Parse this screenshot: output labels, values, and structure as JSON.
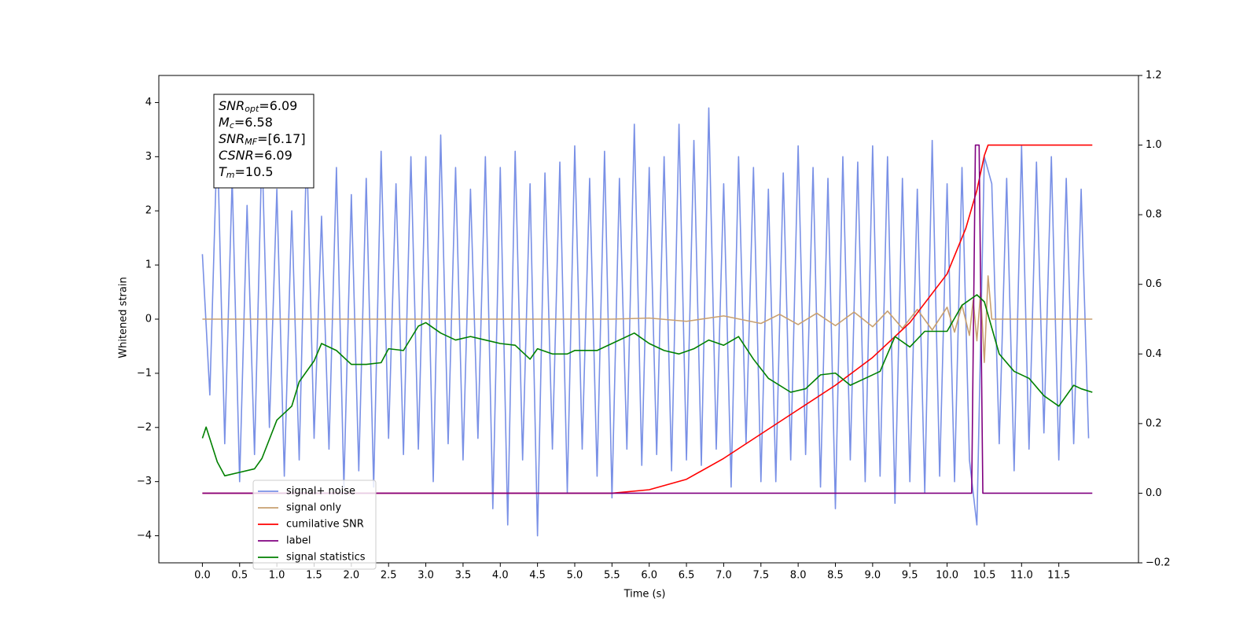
{
  "chart_data": {
    "type": "line",
    "x_label": "Time (s)",
    "y_label": "Whitened strain",
    "xlim": [
      -0.585,
      12.57
    ],
    "ylim": [
      -4.5,
      4.5
    ],
    "y2lim": [
      -0.2,
      1.2
    ],
    "xticks": [
      {
        "value": 0,
        "label": "0.0"
      },
      0.5,
      {
        "value": 1,
        "label": "1.0"
      },
      1.5,
      {
        "value": 2,
        "label": "2.0"
      },
      2.5,
      {
        "value": 3,
        "label": "3.0"
      },
      3.5,
      {
        "value": 4,
        "label": "4.0"
      },
      4.5,
      {
        "value": 5,
        "label": "5.0"
      },
      5.5,
      {
        "value": 6,
        "label": "6.0"
      },
      6.5,
      {
        "value": 7,
        "label": "7.0"
      },
      7.5,
      {
        "value": 8,
        "label": "8.0"
      },
      8.5,
      {
        "value": 9,
        "label": "9.0"
      },
      9.5,
      {
        "value": 10,
        "label": "10.0"
      },
      10.5,
      {
        "value": 11,
        "label": "11.0"
      },
      11.5
    ],
    "yticks": [
      {
        "value": -4,
        "label": "−4"
      },
      {
        "value": -3,
        "label": "−3"
      },
      {
        "value": -2,
        "label": "−2"
      },
      {
        "value": -1,
        "label": "−1"
      },
      0,
      1,
      2,
      3,
      4
    ],
    "y2ticks": [
      {
        "value": -0.2,
        "label": "−0.2"
      },
      {
        "value": 0,
        "label": "0.0"
      },
      0.2,
      0.4,
      0.6,
      0.8,
      {
        "value": 1,
        "label": "1.0"
      },
      1.2
    ],
    "legend": "lower left",
    "annotation": [
      {
        "main": "SNR",
        "sub": "opt",
        "rest": "=6.09"
      },
      {
        "main": "M",
        "sub": "c",
        "rest": "=6.58"
      },
      {
        "main": "SNR",
        "sub": "MF",
        "rest": "=[6.17]"
      },
      {
        "main": "CSNR",
        "sub": null,
        "rest": "=6.09"
      },
      {
        "main": "T",
        "sub": "m",
        "rest": "=10.5"
      }
    ],
    "series": [
      {
        "name": "signal+ noise",
        "color": "#7990e6",
        "x": [
          0,
          0.1,
          0.2,
          0.3,
          0.4,
          0.5,
          0.6,
          0.7,
          0.8,
          0.9,
          1,
          1.1,
          1.2,
          1.3,
          1.4,
          1.5,
          1.6,
          1.7,
          1.8,
          1.9,
          2,
          2.1,
          2.2,
          2.3,
          2.4,
          2.5,
          2.6,
          2.7,
          2.8,
          2.9,
          3,
          3.1,
          3.2,
          3.3,
          3.4,
          3.5,
          3.6,
          3.7,
          3.8,
          3.9,
          4,
          4.1,
          4.2,
          4.3,
          4.4,
          4.5,
          4.6,
          4.7,
          4.8,
          4.9,
          5,
          5.1,
          5.2,
          5.3,
          5.4,
          5.5,
          5.6,
          5.7,
          5.8,
          5.9,
          6,
          6.1,
          6.2,
          6.3,
          6.4,
          6.5,
          6.6,
          6.7,
          6.8,
          6.9,
          7,
          7.1,
          7.2,
          7.3,
          7.4,
          7.5,
          7.6,
          7.7,
          7.8,
          7.9,
          8,
          8.1,
          8.2,
          8.3,
          8.4,
          8.5,
          8.6,
          8.7,
          8.8,
          8.9,
          9,
          9.1,
          9.2,
          9.3,
          9.4,
          9.5,
          9.6,
          9.7,
          9.8,
          9.9,
          10,
          10.1,
          10.2,
          10.3,
          10.4,
          10.5,
          10.6,
          10.7,
          10.8,
          10.9,
          11,
          11.1,
          11.2,
          11.3,
          11.4,
          11.5,
          11.6,
          11.7,
          11.8,
          11.9
        ],
        "values": [
          1.2,
          -1.4,
          3.4,
          -2.3,
          2.6,
          -3.0,
          2.1,
          -2.5,
          3.2,
          -2.0,
          2.4,
          -2.9,
          2.0,
          -2.6,
          3.2,
          -2.2,
          1.9,
          -2.4,
          2.8,
          -3.1,
          2.3,
          -2.8,
          2.6,
          -3.1,
          3.1,
          -2.2,
          2.5,
          -2.5,
          3.0,
          -2.4,
          3.0,
          -3.0,
          3.4,
          -2.3,
          2.8,
          -2.6,
          2.4,
          -2.2,
          3.0,
          -3.5,
          2.8,
          -3.8,
          3.1,
          -2.6,
          2.5,
          -4.0,
          2.7,
          -2.4,
          2.9,
          -3.2,
          3.2,
          -2.4,
          2.6,
          -2.9,
          3.1,
          -3.3,
          2.6,
          -2.4,
          3.6,
          -2.7,
          2.8,
          -2.5,
          3.0,
          -2.8,
          3.6,
          -2.6,
          3.3,
          -2.7,
          3.9,
          -2.4,
          2.5,
          -3.1,
          3.0,
          -2.3,
          2.8,
          -3.0,
          2.4,
          -3.0,
          2.7,
          -2.6,
          3.2,
          -2.5,
          2.8,
          -3.1,
          2.6,
          -3.5,
          3.0,
          -2.6,
          2.9,
          -3.0,
          3.2,
          -2.9,
          3.0,
          -3.4,
          2.6,
          -3.0,
          2.4,
          -3.2,
          3.3,
          -2.9,
          2.5,
          -3.0,
          2.8,
          -2.6,
          -3.8,
          3.0,
          2.5,
          -2.3,
          2.6,
          -2.8,
          3.2,
          -2.4,
          2.9,
          -2.1,
          3.0,
          -2.6,
          2.6,
          -2.3,
          2.4,
          -2.2
        ]
      },
      {
        "name": "signal only",
        "color": "#c8a070",
        "x": [
          0,
          5.5,
          6.0,
          6.5,
          7.0,
          7.5,
          7.75,
          8.0,
          8.25,
          8.5,
          8.75,
          9.0,
          9.2,
          9.4,
          9.6,
          9.8,
          10.0,
          10.1,
          10.2,
          10.3,
          10.35,
          10.4,
          10.45,
          10.5,
          10.55,
          10.6,
          11.95
        ],
        "values": [
          0,
          0,
          0.02,
          -0.04,
          0.06,
          -0.08,
          0.09,
          -0.1,
          0.11,
          -0.12,
          0.13,
          -0.14,
          0.15,
          -0.17,
          0.18,
          -0.2,
          0.22,
          -0.24,
          0.26,
          -0.3,
          0.35,
          -0.4,
          0.5,
          -0.8,
          0.8,
          0,
          0
        ]
      },
      {
        "name": "cumilative SNR",
        "color": "#ff0000",
        "axis": "y2",
        "x": [
          0,
          5.5,
          6,
          6.5,
          7,
          7.5,
          8,
          8.5,
          9,
          9.5,
          10,
          10.25,
          10.4,
          10.5,
          10.55,
          11.95
        ],
        "values": [
          0,
          0,
          0.01,
          0.04,
          0.1,
          0.17,
          0.24,
          0.31,
          0.39,
          0.49,
          0.63,
          0.76,
          0.87,
          0.97,
          1.0,
          1.0
        ]
      },
      {
        "name": "label",
        "color": "#800080",
        "axis": "y2",
        "x": [
          0,
          10.33,
          10.38,
          10.43,
          10.48,
          11.95
        ],
        "values": [
          0,
          0,
          1,
          1,
          0,
          0
        ]
      },
      {
        "name": "signal statistics",
        "color": "#008000",
        "axis": "y2",
        "x": [
          0,
          0.05,
          0.2,
          0.3,
          0.5,
          0.7,
          0.8,
          1.0,
          1.2,
          1.3,
          1.5,
          1.6,
          1.8,
          2.0,
          2.2,
          2.4,
          2.5,
          2.7,
          2.9,
          3.0,
          3.2,
          3.4,
          3.6,
          3.8,
          4.0,
          4.2,
          4.4,
          4.5,
          4.7,
          4.9,
          5.0,
          5.3,
          5.5,
          5.8,
          6.0,
          6.2,
          6.4,
          6.6,
          6.8,
          7.0,
          7.2,
          7.4,
          7.6,
          7.9,
          8.1,
          8.3,
          8.5,
          8.7,
          8.9,
          9.1,
          9.3,
          9.5,
          9.7,
          10.0,
          10.2,
          10.4,
          10.5,
          10.7,
          10.9,
          11.1,
          11.3,
          11.5,
          11.7,
          11.8,
          11.95
        ],
        "values": [
          0.158,
          0.19,
          0.09,
          0.05,
          0.06,
          0.07,
          0.1,
          0.21,
          0.25,
          0.32,
          0.38,
          0.43,
          0.41,
          0.37,
          0.37,
          0.375,
          0.415,
          0.41,
          0.48,
          0.49,
          0.46,
          0.44,
          0.45,
          0.44,
          0.43,
          0.425,
          0.385,
          0.415,
          0.4,
          0.4,
          0.41,
          0.41,
          0.43,
          0.46,
          0.43,
          0.41,
          0.4,
          0.415,
          0.44,
          0.425,
          0.45,
          0.385,
          0.33,
          0.29,
          0.3,
          0.34,
          0.345,
          0.31,
          0.33,
          0.35,
          0.45,
          0.42,
          0.465,
          0.465,
          0.54,
          0.57,
          0.55,
          0.4,
          0.35,
          0.33,
          0.28,
          0.25,
          0.31,
          0.3,
          0.29
        ]
      }
    ]
  }
}
